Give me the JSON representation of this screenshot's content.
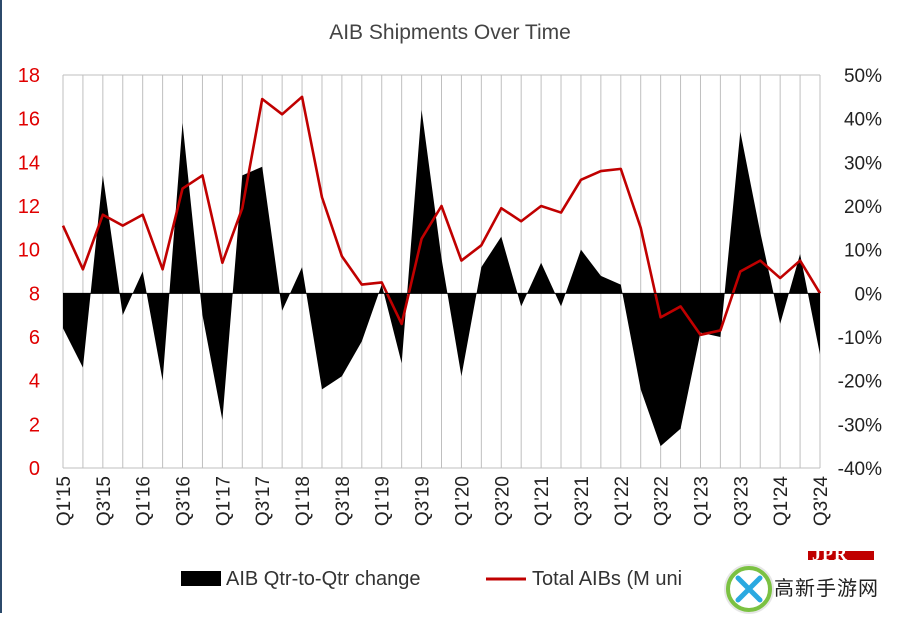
{
  "chart_data": {
    "type": "area+line",
    "title": "AIB Shipments Over Time",
    "x": [
      "Q1'15",
      "Q2'15",
      "Q3'15",
      "Q4'15",
      "Q1'16",
      "Q2'16",
      "Q3'16",
      "Q4'16",
      "Q1'17",
      "Q2'17",
      "Q3'17",
      "Q4'17",
      "Q1'18",
      "Q2'18",
      "Q3'18",
      "Q4'18",
      "Q1'19",
      "Q2'19",
      "Q3'19",
      "Q4'19",
      "Q1'20",
      "Q2'20",
      "Q3'20",
      "Q4'20",
      "Q1'21",
      "Q2'21",
      "Q3'21",
      "Q4'21",
      "Q1'22",
      "Q2'22",
      "Q3'22",
      "Q4'22",
      "Q1'23",
      "Q2'23",
      "Q3'23",
      "Q4'23",
      "Q1'24",
      "Q2'24",
      "Q3'24"
    ],
    "x_tick_labels": [
      "Q1'15",
      "Q3'15",
      "Q1'16",
      "Q3'16",
      "Q1'17",
      "Q3'17",
      "Q1'18",
      "Q3'18",
      "Q1'19",
      "Q3'19",
      "Q1'20",
      "Q3'20",
      "Q1'21",
      "Q3'21",
      "Q1'22",
      "Q3'22",
      "Q1'23",
      "Q3'23",
      "Q1'24",
      "Q3'24"
    ],
    "series": [
      {
        "name": "AIB Qtr-to-Qtr change",
        "axis": "right",
        "color": "#000000",
        "values": [
          -8,
          -17,
          27,
          -5,
          5,
          -20,
          39,
          -5,
          -29,
          27,
          29,
          -4,
          6,
          -22,
          -19,
          -11,
          2,
          -16,
          42,
          8,
          -19,
          6,
          13,
          -3,
          7,
          -3,
          10,
          4,
          2,
          -22,
          -35,
          -31,
          -9,
          -10,
          37,
          14,
          -7,
          9,
          -14
        ]
      },
      {
        "name": "Total AIBs (M uni",
        "axis": "left",
        "color": "#c00000",
        "values": [
          11.1,
          9.1,
          11.6,
          11.1,
          11.6,
          9.1,
          12.8,
          13.4,
          9.4,
          11.9,
          16.9,
          16.2,
          17.0,
          12.4,
          9.7,
          8.4,
          8.5,
          6.6,
          10.5,
          12.0,
          9.5,
          10.2,
          11.9,
          11.3,
          12.0,
          11.7,
          13.2,
          13.6,
          13.7,
          11.0,
          6.9,
          7.4,
          6.1,
          6.3,
          9.0,
          9.5,
          8.7,
          9.5,
          8.0
        ]
      }
    ],
    "y_left": {
      "range": [
        0,
        18
      ],
      "ticks": [
        "0",
        "2",
        "4",
        "6",
        "8",
        "10",
        "12",
        "14",
        "16",
        "18"
      ],
      "color": "#e00000"
    },
    "y_right": {
      "range": [
        -40,
        50
      ],
      "ticks": [
        "-40%",
        "-30%",
        "-20%",
        "-10%",
        "0%",
        "10%",
        "20%",
        "30%",
        "40%",
        "50%"
      ]
    },
    "grid": "vertical",
    "legend": "bottom"
  },
  "branding": {
    "badge_text": "JPR",
    "watermark_text": "高新手游网"
  }
}
